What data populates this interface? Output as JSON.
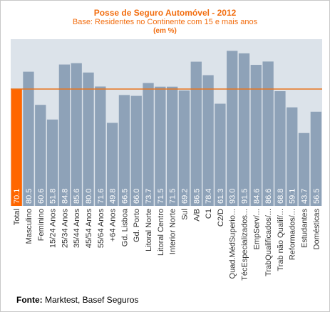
{
  "title": "Posse de Seguro Automóvel - 2012",
  "subtitle": "Base: Residentes no Continente com 15 e mais anos",
  "unit": "(em %)",
  "source": {
    "label": "Fonte:",
    "text": " Marktest, Basef Seguros"
  },
  "colors": {
    "highlight": "#ff6600",
    "bars": "#8ea2b8",
    "plot_bg": "#dce3ea",
    "reference_line": "#e8741e",
    "value_label": "#ffffff",
    "axis_text": "#333333"
  },
  "chart_data": {
    "type": "bar",
    "title": "Posse de Seguro Automóvel - 2012",
    "subtitle": "Base: Residentes no Continente com 15 e mais anos",
    "unit": "(em %)",
    "categories": [
      "Total",
      "Masculino",
      "Feminino",
      "15/24 Anos",
      "25/34 Anos",
      "35/44 Anos",
      "45/54 Anos",
      "55/64 Anos",
      "+64 Anos",
      "Gd. Lisboa",
      "Gd. Porto",
      "Litoral Norte",
      "Litoral Centro",
      "Interior Norte",
      "Sul",
      "A/B",
      "C1",
      "C2/D",
      "Quad.MédSuperio...",
      "TécEspecializados...",
      "EmpServ/...",
      "TrabQualificados/...",
      "Trab não Qualif/...",
      "Reformados/...",
      "Estudantes",
      "Domésticas"
    ],
    "values": [
      70.1,
      80.5,
      60.6,
      51.8,
      84.8,
      85.6,
      80.0,
      71.6,
      49.8,
      66.5,
      66.0,
      73.7,
      71.5,
      71.5,
      69.2,
      86.5,
      78.4,
      61.3,
      93.0,
      91.5,
      84.6,
      86.6,
      68.8,
      59.1,
      43.7,
      56.5
    ],
    "value_labels": [
      "70.1",
      "80.5",
      "60.6",
      "51.8",
      "84.8",
      "85.6",
      "80.0",
      "71.6",
      "49.8",
      "66.5",
      "66.0",
      "73.7",
      "71.5",
      "71.5",
      "69.2",
      "86.5",
      "78.4",
      "61.3",
      "93.0",
      "91.5",
      "84.6",
      "86.6",
      "68.8",
      "59.1",
      "43.7",
      "56.5"
    ],
    "highlight_index": 0,
    "reference_value": 70.1,
    "ylim": [
      0,
      100
    ],
    "grid": false,
    "legend": "none"
  }
}
